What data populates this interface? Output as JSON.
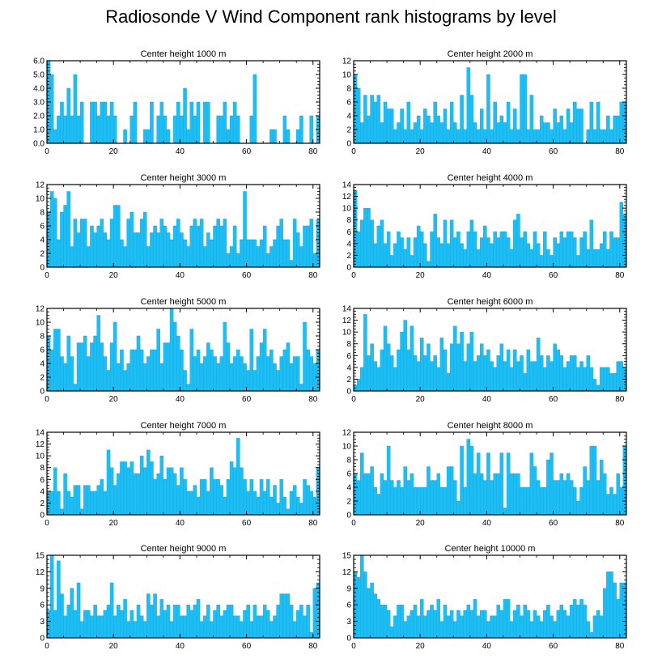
{
  "title": "Radiosonde V Wind Component rank histograms by level",
  "colors": {
    "bar": "#1ebdf4",
    "bar_outline": "#0aa7e0",
    "axis": "#000000"
  },
  "chart_data": [
    {
      "type": "bar",
      "title": "Center height 1000 m",
      "xlim": [
        0,
        82
      ],
      "ylim": [
        0,
        6
      ],
      "xticks": [
        0,
        20,
        40,
        60,
        80
      ],
      "yticks": [
        0,
        1,
        2,
        3,
        4,
        5,
        6
      ],
      "ytick_labels": [
        "0.0",
        "1.0",
        "2.0",
        "3.0",
        "4.0",
        "5.0",
        "6.0"
      ],
      "values": [
        6,
        5,
        1,
        2,
        3,
        2,
        4,
        2,
        5,
        2,
        3,
        0,
        0,
        3,
        3,
        2,
        3,
        3,
        2,
        3,
        2,
        0,
        0,
        1,
        0,
        2,
        3,
        0,
        0,
        1,
        1,
        3,
        0,
        2,
        3,
        2,
        1,
        0,
        2,
        3,
        2,
        4,
        1,
        3,
        2,
        3,
        0,
        3,
        3,
        0,
        0,
        2,
        2,
        3,
        1,
        2,
        3,
        2,
        0,
        0,
        0,
        2,
        5,
        0,
        0,
        0,
        0,
        1,
        1,
        0,
        0,
        2,
        1,
        0,
        0,
        1,
        2,
        0,
        0,
        2,
        0,
        2
      ]
    },
    {
      "type": "bar",
      "title": "Center height 2000 m",
      "xlim": [
        0,
        82
      ],
      "ylim": [
        0,
        12
      ],
      "xticks": [
        0,
        20,
        40,
        60,
        80
      ],
      "yticks": [
        0,
        2,
        4,
        6,
        8,
        10,
        12
      ],
      "ytick_labels": [
        "0",
        "2",
        "4",
        "6",
        "8",
        "10",
        "12"
      ],
      "values": [
        10,
        8,
        3,
        7,
        4,
        7,
        6,
        7,
        3,
        6,
        5,
        5,
        2,
        3,
        5,
        2,
        6,
        2,
        3,
        4,
        2,
        5,
        4,
        3,
        6,
        4,
        3,
        5,
        2,
        6,
        3,
        2,
        7,
        2,
        11,
        7,
        3,
        2,
        5,
        2,
        10,
        2,
        6,
        3,
        4,
        3,
        6,
        2,
        5,
        2,
        10,
        10,
        2,
        7,
        2,
        2,
        4,
        3,
        3,
        2,
        5,
        3,
        4,
        2,
        5,
        3,
        6,
        5,
        5,
        0,
        2,
        6,
        2,
        6,
        2,
        2,
        4,
        2,
        4,
        4,
        6,
        6
      ]
    },
    {
      "type": "bar",
      "title": "Center height 3000 m",
      "xlim": [
        0,
        82
      ],
      "ylim": [
        0,
        12
      ],
      "xticks": [
        0,
        20,
        40,
        60,
        80
      ],
      "yticks": [
        0,
        2,
        4,
        6,
        8,
        10,
        12
      ],
      "ytick_labels": [
        "0",
        "2",
        "4",
        "6",
        "8",
        "10",
        "12"
      ],
      "values": [
        8,
        11,
        10,
        4,
        8,
        9,
        11,
        3,
        7,
        5,
        7,
        7,
        3,
        6,
        5,
        6,
        7,
        5,
        4,
        7,
        9,
        9,
        4,
        3,
        7,
        8,
        5,
        5,
        7,
        8,
        3,
        5,
        6,
        5,
        7,
        6,
        5,
        4,
        6,
        7,
        5,
        4,
        3,
        6,
        7,
        6,
        7,
        3,
        5,
        4,
        6,
        7,
        6,
        7,
        2,
        3,
        6,
        2,
        4,
        11,
        4,
        4,
        4,
        3,
        4,
        6,
        2,
        3,
        4,
        6,
        7,
        4,
        4,
        1,
        7,
        5,
        3,
        6,
        6,
        7,
        2,
        7
      ]
    },
    {
      "type": "bar",
      "title": "Center height 4000 m",
      "xlim": [
        0,
        82
      ],
      "ylim": [
        0,
        14
      ],
      "xticks": [
        0,
        20,
        40,
        60,
        80
      ],
      "yticks": [
        0,
        2,
        4,
        6,
        8,
        10,
        12,
        14
      ],
      "ytick_labels": [
        "0",
        "2",
        "4",
        "6",
        "8",
        "10",
        "12",
        "14"
      ],
      "values": [
        13,
        6,
        8,
        10,
        10,
        8,
        4,
        7,
        8,
        4,
        6,
        2,
        4,
        6,
        5,
        3,
        5,
        2,
        5,
        7,
        6,
        4,
        1,
        6,
        9,
        5,
        4,
        8,
        4,
        8,
        5,
        6,
        4,
        3,
        6,
        8,
        6,
        3,
        5,
        7,
        5,
        4,
        6,
        5,
        6,
        6,
        5,
        3,
        8,
        9,
        5,
        6,
        4,
        3,
        6,
        4,
        2,
        6,
        3,
        2,
        5,
        4,
        6,
        5,
        6,
        6,
        5,
        2,
        5,
        6,
        3,
        8,
        3,
        3,
        4,
        6,
        3,
        6,
        5,
        5,
        11,
        9
      ]
    },
    {
      "type": "bar",
      "title": "Center height 5000 m",
      "xlim": [
        0,
        82
      ],
      "ylim": [
        0,
        12
      ],
      "xticks": [
        0,
        20,
        40,
        60,
        80
      ],
      "yticks": [
        0,
        2,
        4,
        6,
        8,
        10,
        12
      ],
      "ytick_labels": [
        "0",
        "2",
        "4",
        "6",
        "8",
        "10",
        "12"
      ],
      "values": [
        8,
        6,
        9,
        9,
        5,
        4,
        8,
        5,
        1,
        7,
        7,
        8,
        5,
        7,
        8,
        11,
        7,
        5,
        3,
        7,
        10,
        4,
        6,
        3,
        4,
        6,
        6,
        8,
        6,
        4,
        5,
        6,
        6,
        9,
        4,
        7,
        7,
        12,
        10,
        8,
        6,
        3,
        1,
        9,
        5,
        6,
        4,
        5,
        7,
        6,
        5,
        4,
        5,
        10,
        7,
        4,
        5,
        6,
        5,
        4,
        3,
        9,
        3,
        5,
        7,
        9,
        5,
        6,
        4,
        3,
        5,
        6,
        7,
        4,
        5,
        5,
        1,
        10,
        6,
        5,
        4,
        6
      ]
    },
    {
      "type": "bar",
      "title": "Center height 6000 m",
      "xlim": [
        0,
        82
      ],
      "ylim": [
        0,
        14
      ],
      "xticks": [
        0,
        20,
        40,
        60,
        80
      ],
      "yticks": [
        0,
        2,
        4,
        6,
        8,
        10,
        12,
        14
      ],
      "ytick_labels": [
        "0",
        "2",
        "4",
        "6",
        "8",
        "10",
        "12",
        "14"
      ],
      "values": [
        1,
        2,
        4,
        13,
        6,
        8,
        5,
        4,
        7,
        11,
        8,
        6,
        4,
        7,
        10,
        12,
        7,
        11,
        6,
        5,
        9,
        6,
        8,
        5,
        6,
        4,
        9,
        7,
        3,
        8,
        11,
        8,
        10,
        5,
        8,
        10,
        5,
        6,
        8,
        6,
        7,
        5,
        4,
        6,
        8,
        5,
        7,
        4,
        7,
        5,
        6,
        3,
        7,
        5,
        5,
        9,
        6,
        4,
        6,
        5,
        8,
        7,
        6,
        4,
        5,
        6,
        6,
        4,
        5,
        4,
        6,
        4,
        2,
        1,
        4,
        4,
        4,
        3,
        3,
        5,
        5,
        4
      ]
    },
    {
      "type": "bar",
      "title": "Center height 7000 m",
      "xlim": [
        0,
        82
      ],
      "ylim": [
        0,
        14
      ],
      "xticks": [
        0,
        20,
        40,
        60,
        80
      ],
      "yticks": [
        0,
        2,
        4,
        6,
        8,
        10,
        12,
        14
      ],
      "ytick_labels": [
        "0",
        "2",
        "4",
        "6",
        "8",
        "10",
        "12",
        "14"
      ],
      "values": [
        4,
        4,
        8,
        4,
        1,
        7,
        4,
        3,
        5,
        5,
        1,
        5,
        5,
        4,
        4,
        5,
        6,
        4,
        11,
        8,
        5,
        7,
        9,
        9,
        8,
        9,
        7,
        7,
        10,
        8,
        11,
        9,
        6,
        7,
        10,
        6,
        8,
        8,
        7,
        5,
        8,
        6,
        4,
        4,
        5,
        3,
        6,
        6,
        4,
        8,
        6,
        6,
        5,
        3,
        6,
        9,
        8,
        13,
        8,
        6,
        4,
        6,
        4,
        3,
        6,
        4,
        6,
        3,
        5,
        2,
        6,
        3,
        1,
        4,
        5,
        3,
        2,
        6,
        5,
        4,
        3,
        8
      ]
    },
    {
      "type": "bar",
      "title": "Center height 8000 m",
      "xlim": [
        0,
        82
      ],
      "ylim": [
        0,
        12
      ],
      "xticks": [
        0,
        20,
        40,
        60,
        80
      ],
      "yticks": [
        0,
        2,
        4,
        6,
        8,
        10,
        12
      ],
      "ytick_labels": [
        "0",
        "2",
        "4",
        "6",
        "8",
        "10",
        "12"
      ],
      "values": [
        6,
        5,
        9,
        6,
        6,
        7,
        4,
        3,
        6,
        5,
        10,
        5,
        4,
        5,
        4,
        7,
        5,
        6,
        4,
        4,
        4,
        4,
        7,
        5,
        5,
        6,
        4,
        4,
        7,
        7,
        5,
        2,
        10,
        4,
        11,
        10,
        6,
        9,
        6,
        5,
        9,
        5,
        6,
        6,
        9,
        1,
        9,
        6,
        6,
        6,
        4,
        4,
        4,
        9,
        7,
        5,
        4,
        4,
        8,
        9,
        5,
        5,
        6,
        5,
        6,
        5,
        4,
        2,
        4,
        7,
        5,
        10,
        10,
        5,
        8,
        6,
        3,
        4,
        3,
        6,
        4,
        10
      ]
    },
    {
      "type": "bar",
      "title": "Center height 9000 m",
      "xlim": [
        0,
        82
      ],
      "ylim": [
        0,
        15
      ],
      "xticks": [
        0,
        20,
        40,
        60,
        80
      ],
      "yticks": [
        0,
        3,
        6,
        9,
        12,
        15
      ],
      "ytick_labels": [
        "0",
        "3",
        "6",
        "9",
        "12",
        "15"
      ],
      "values": [
        5,
        15,
        5,
        14,
        8,
        4,
        6,
        9,
        5,
        10,
        3,
        5,
        5,
        4,
        6,
        4,
        4,
        5,
        6,
        10,
        4,
        6,
        5,
        7,
        3,
        5,
        3,
        6,
        4,
        3,
        8,
        6,
        8,
        4,
        7,
        5,
        6,
        3,
        6,
        6,
        4,
        4,
        6,
        5,
        6,
        7,
        3,
        4,
        6,
        3,
        5,
        6,
        4,
        5,
        6,
        6,
        4,
        4,
        3,
        5,
        6,
        3,
        6,
        4,
        4,
        6,
        5,
        3,
        4,
        6,
        8,
        8,
        8,
        6,
        3,
        5,
        6,
        4,
        6,
        1,
        9,
        10
      ]
    },
    {
      "type": "bar",
      "title": "Center height 10000 m",
      "xlim": [
        0,
        82
      ],
      "ylim": [
        0,
        15
      ],
      "xticks": [
        0,
        20,
        40,
        60,
        80
      ],
      "yticks": [
        0,
        3,
        6,
        9,
        12,
        15
      ],
      "ytick_labels": [
        "0",
        "3",
        "6",
        "9",
        "12",
        "15"
      ],
      "values": [
        12,
        11,
        15,
        12,
        9,
        10,
        8,
        7,
        6,
        6,
        5,
        2,
        4,
        6,
        6,
        3,
        4,
        5,
        6,
        4,
        7,
        4,
        5,
        6,
        5,
        7,
        3,
        6,
        4,
        5,
        3,
        5,
        4,
        5,
        6,
        5,
        7,
        4,
        5,
        5,
        3,
        4,
        4,
        6,
        5,
        7,
        7,
        3,
        5,
        6,
        4,
        6,
        5,
        3,
        5,
        4,
        3,
        5,
        6,
        4,
        3,
        5,
        6,
        5,
        4,
        6,
        7,
        6,
        7,
        6,
        3,
        1,
        4,
        5,
        4,
        9,
        12,
        12,
        10,
        7,
        10,
        10
      ]
    }
  ]
}
